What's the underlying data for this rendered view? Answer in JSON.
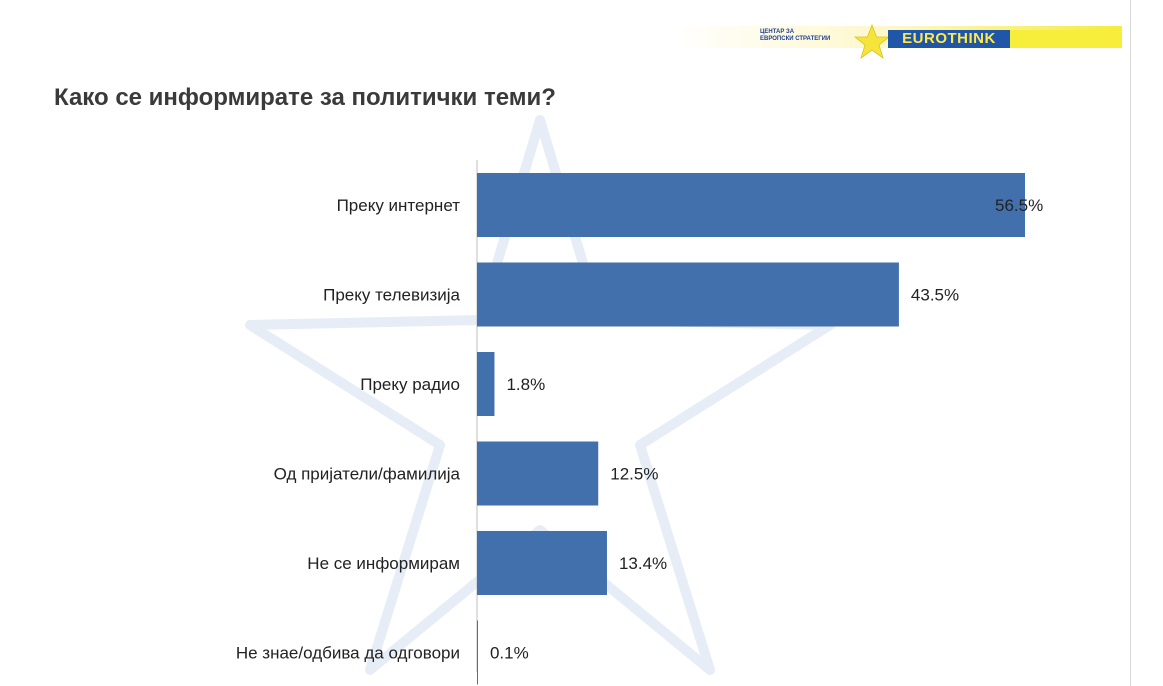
{
  "logo": {
    "line1": "ЦЕНТАР ЗА",
    "line2": "ЕВРОПСКИ СТРАТЕГИИ",
    "brand": "EUROTHINK",
    "star_icon": "star-icon"
  },
  "title": "Како се информирате за политички теми?",
  "colors": {
    "bar": "#4270ad",
    "accent_yellow": "#f5ec3b",
    "brand_blue": "#1f56a8"
  },
  "chart_data": {
    "type": "bar",
    "orientation": "horizontal",
    "title": "Како се информирате за политички теми?",
    "categories": [
      "Преку интернет",
      "Преку телевизија",
      "Преку радио",
      "Од пријатели/фамилија",
      "Не се информирам",
      "Не знае/одбива да одговори"
    ],
    "values": [
      56.5,
      43.5,
      1.8,
      12.5,
      13.4,
      0.1
    ],
    "labels": [
      "56.5%",
      "43.5%",
      "1.8%",
      "12.5%",
      "13.4%",
      "0.1%"
    ],
    "xlim": [
      0,
      56.5
    ],
    "grid": false,
    "legend": "none"
  }
}
